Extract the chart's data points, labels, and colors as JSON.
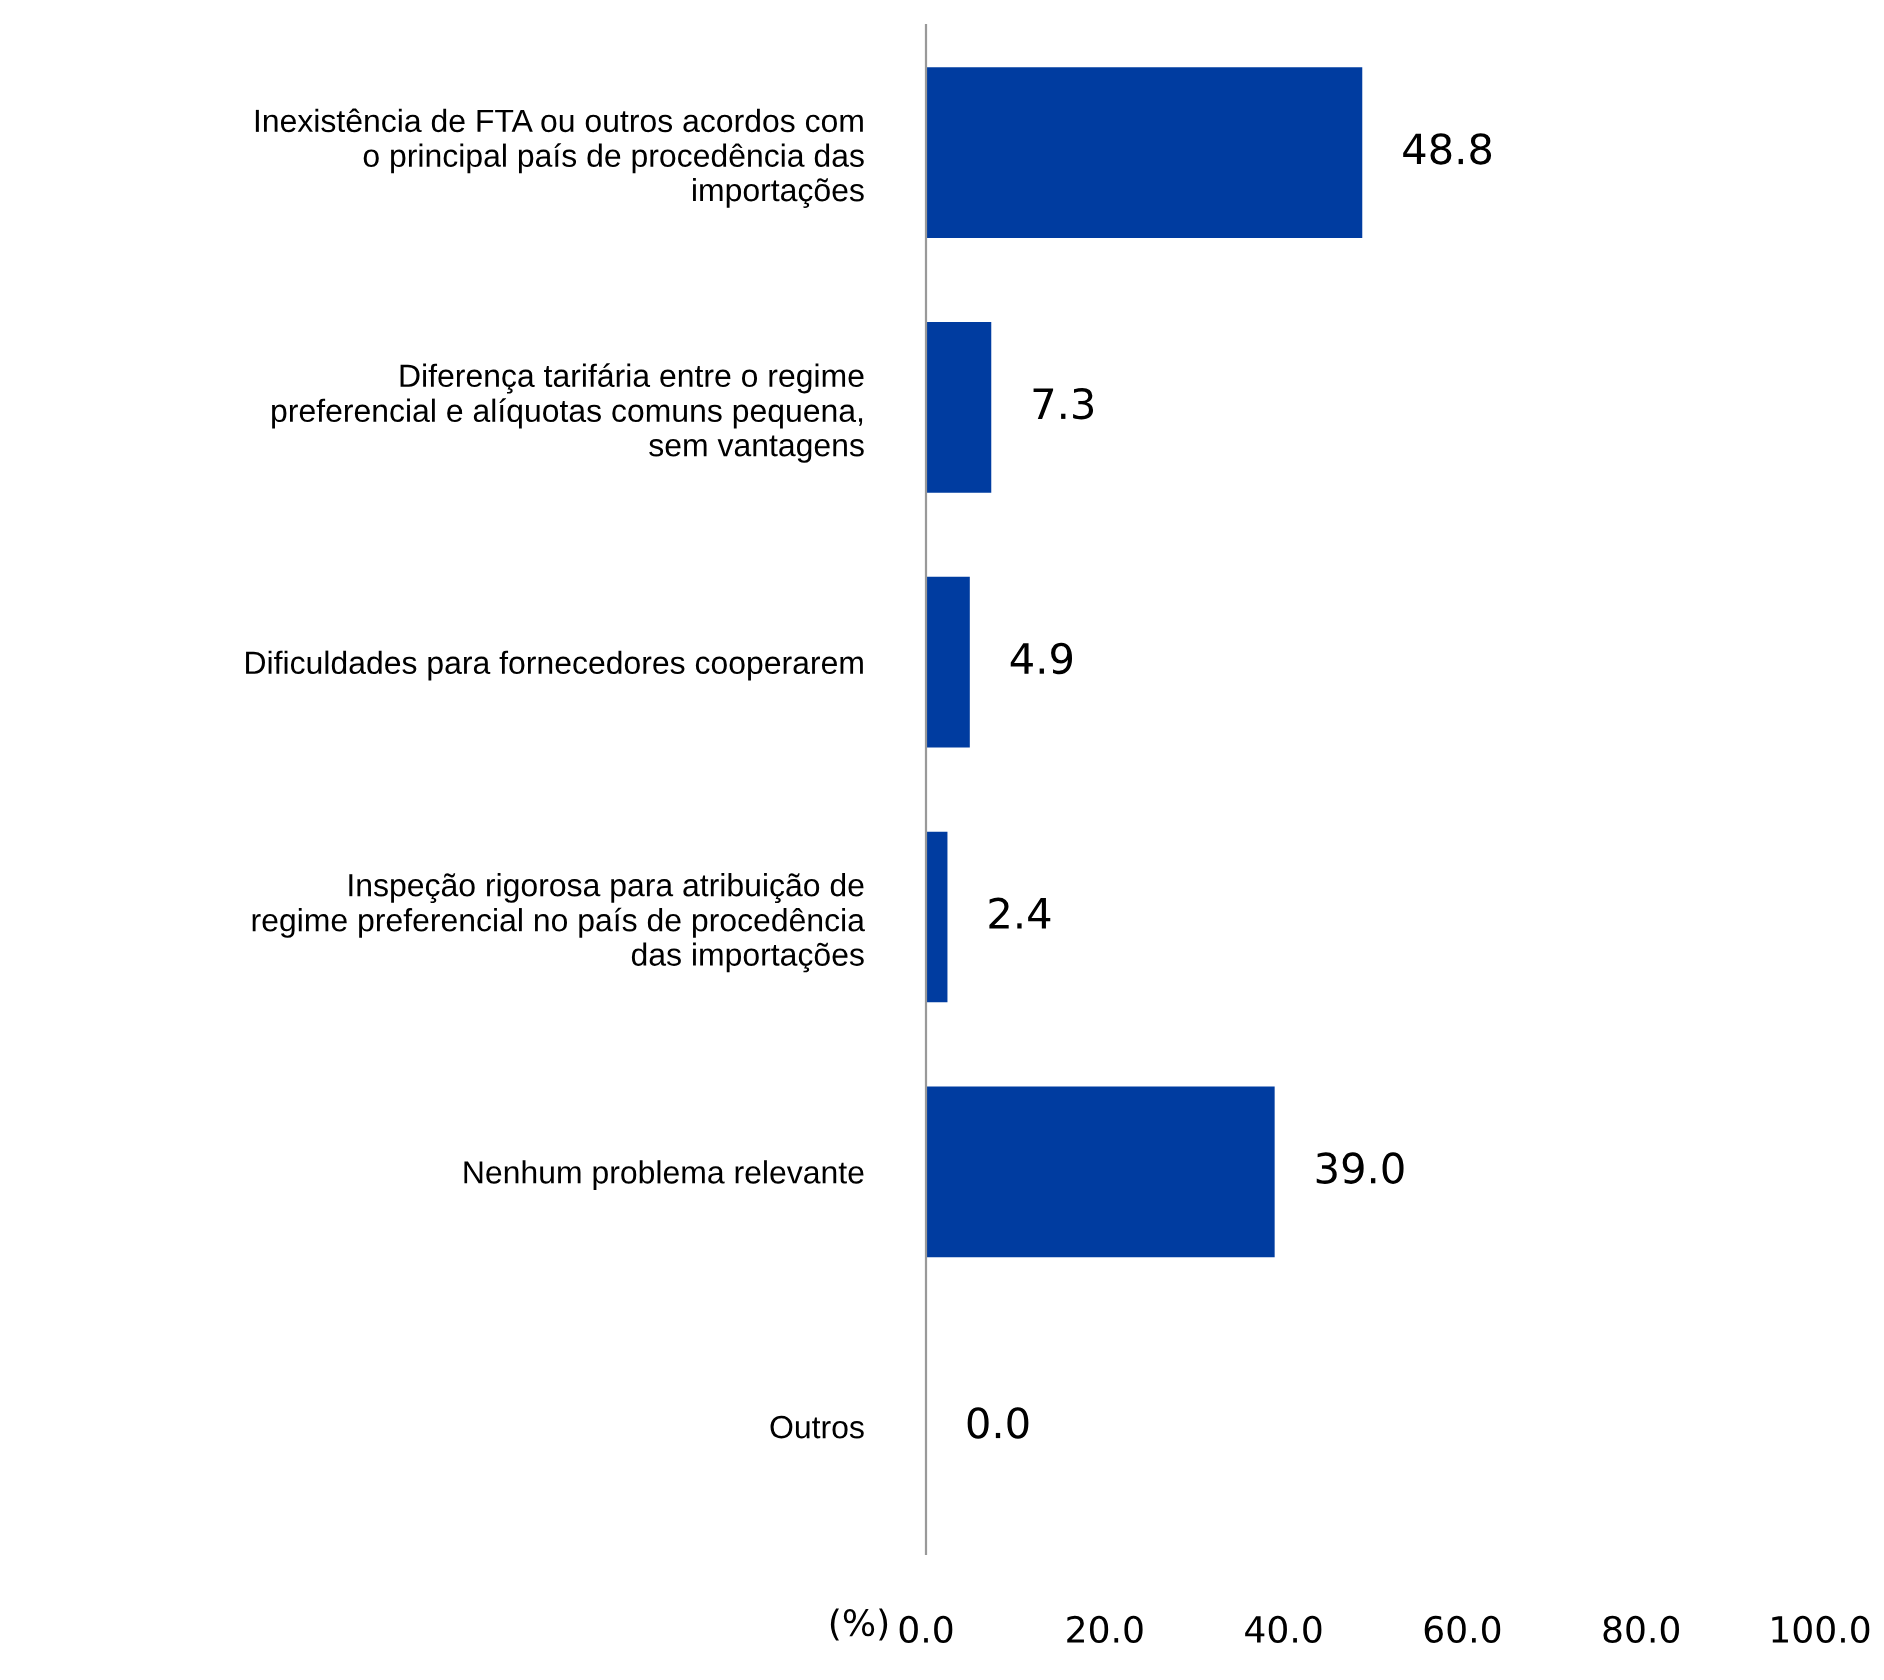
{
  "chart_data": {
    "type": "bar",
    "orientation": "horizontal",
    "xlabel": "(%)",
    "categories": [
      "Inexistência de FTA ou outros acordos com\no principal país de procedência das\nimportações",
      "Diferença tarifária entre o regime\npreferencial e alíquotas comuns pequena,\nsem vantagens",
      "Dificuldades para fornecedores cooperarem",
      "Inspeção rigorosa para atribuição de\nregime preferencial no país de procedência\ndas importações",
      "Nenhum problema relevante",
      "Outros"
    ],
    "values": [
      48.8,
      7.3,
      4.9,
      2.4,
      39.0,
      0.0
    ],
    "value_labels": [
      "48.8",
      "7.3",
      "4.9",
      "2.4",
      "39.0",
      "0.0"
    ],
    "color": "#003ca0",
    "xlim": [
      0,
      100
    ],
    "xticks": [
      {
        "value": 0,
        "label": "0.0"
      },
      {
        "value": 20,
        "label": "20.0"
      },
      {
        "value": 40,
        "label": "40.0"
      },
      {
        "value": 60,
        "label": "60.0"
      },
      {
        "value": 80,
        "label": "80.0"
      },
      {
        "value": 100,
        "label": "100.0"
      }
    ],
    "grid": false,
    "legend": false
  }
}
